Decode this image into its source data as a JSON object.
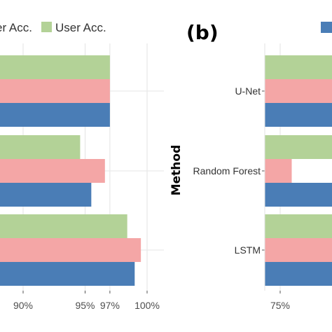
{
  "chart_data": [
    {
      "panel": "a",
      "type": "bar",
      "orientation": "horizontal",
      "legend": {
        "entries": [
          {
            "label": "er Acc.",
            "color": "#f4a6a6"
          },
          {
            "label": "User Acc.",
            "color": "#b3d297"
          }
        ],
        "position": "top"
      },
      "categories": [
        "",
        "",
        ""
      ],
      "series": [
        {
          "name": "User Acc.",
          "color": "#b3d297",
          "values": [
            97.0,
            94.6,
            98.4
          ]
        },
        {
          "name": "er Acc.",
          "color": "#f4a6a6",
          "values": [
            97.0,
            96.6,
            99.5
          ]
        },
        {
          "color": "#4a7db6",
          "values": [
            97.0,
            95.5,
            99.0
          ]
        }
      ],
      "xticks": [
        "90%",
        "95%",
        "97%",
        "100%"
      ],
      "xtick_values": [
        90,
        95,
        97,
        100
      ]
    },
    {
      "panel": "b",
      "type": "bar",
      "orientation": "horizontal",
      "panel_label": "(b)",
      "ylabel": "Method",
      "categories": [
        "U-Net",
        "Random Forest",
        "LSTM"
      ],
      "series": [
        {
          "color": "#b3d297",
          "values": [
            null,
            null,
            null
          ]
        },
        {
          "color": "#f4a6a6",
          "values": [
            null,
            78.3,
            null
          ]
        },
        {
          "color": "#4a7db6",
          "values": [
            null,
            null,
            null
          ]
        }
      ],
      "xticks": [
        "75%"
      ],
      "xtick_values": [
        75
      ]
    }
  ]
}
